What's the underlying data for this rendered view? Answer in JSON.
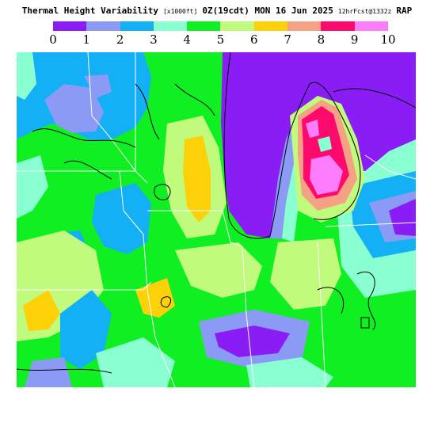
{
  "title": {
    "main": "Thermal Height Variability",
    "units": "[x1000ft]",
    "time": "0Z(19cdt) MON 16 Jun 2025",
    "run": "12hrFcst@1332z",
    "model": "RAP"
  },
  "legend": {
    "colors": [
      "#8a1cf6",
      "#8a9af5",
      "#13b0f5",
      "#8affd2",
      "#0fef22",
      "#c1fb7e",
      "#fdd108",
      "#f6a184",
      "#fc0a6c",
      "#fb7dfb"
    ],
    "labels": [
      "0",
      "1",
      "2",
      "3",
      "4",
      "5",
      "6",
      "7",
      "8",
      "9",
      "10"
    ]
  }
}
